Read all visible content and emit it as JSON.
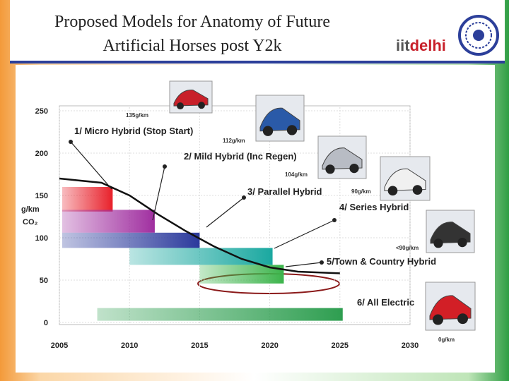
{
  "header": {
    "title_lines": [
      "Proposed Models for Anatomy of Future",
      "Artificial Horses post Y2k"
    ],
    "logo_part1": "iit",
    "logo_part2": "delhi"
  },
  "chart_data": {
    "type": "range-bar",
    "y_label_lines": [
      "g/km",
      "CO₂"
    ],
    "categories": [
      "1/ Micro Hybrid (Stop Start)",
      "2/ Mild Hybrid (Inc Regen)",
      "3/ Parallel Hybrid",
      "4/ Series Hybrid",
      "5/Town & Country Hybrid",
      "6/ All Electric"
    ],
    "x_start": [
      2005.2,
      2005.2,
      2005.2,
      2010,
      2015,
      2007.7
    ],
    "x_end": [
      2008.8,
      2011.8,
      2015,
      2020.2,
      2021,
      2025.2
    ],
    "y_high": [
      160,
      133,
      106,
      88,
      68,
      17
    ],
    "y_low": [
      131,
      106,
      88,
      68,
      46,
      2
    ],
    "colors": [
      "#e8202a",
      "#a02fa0",
      "#2b3a9c",
      "#1aa8a0",
      "#3cb44b",
      "#2e9e50"
    ],
    "annotations": [
      "135g/km",
      "112g/km",
      "104g/km",
      "90g/km",
      "<90g/km",
      "0g/km"
    ],
    "trend": {
      "x": [
        2005,
        2008,
        2010,
        2012,
        2014,
        2016,
        2018,
        2020,
        2022,
        2025
      ],
      "y": [
        170,
        165,
        150,
        128,
        108,
        90,
        75,
        65,
        60,
        58
      ],
      "color": "#111111"
    },
    "xlim": [
      2005,
      2030
    ],
    "xticks": [
      2005,
      2010,
      2015,
      2020,
      2025,
      2030
    ],
    "ylim": [
      0,
      250
    ],
    "yticks": [
      0,
      50,
      100,
      150,
      200,
      250
    ],
    "grid": true
  }
}
